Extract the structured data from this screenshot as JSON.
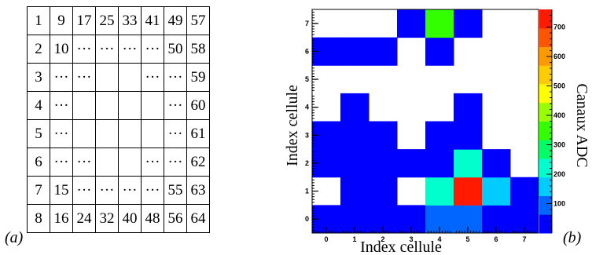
{
  "panel_a": {
    "label": "(a)",
    "rows": [
      [
        "1",
        "9",
        "17",
        "25",
        "33",
        "41",
        "49",
        "57"
      ],
      [
        "2",
        "10",
        "···",
        "···",
        "···",
        "···",
        "50",
        "58"
      ],
      [
        "3",
        "···",
        "···",
        "",
        "",
        "···",
        "···",
        "59"
      ],
      [
        "4",
        "···",
        "",
        "",
        "",
        "",
        "···",
        "60"
      ],
      [
        "5",
        "···",
        "",
        "",
        "",
        "",
        "···",
        "61"
      ],
      [
        "6",
        "···",
        "···",
        "",
        "",
        "···",
        "···",
        "62"
      ],
      [
        "7",
        "15",
        "···",
        "···",
        "···",
        "···",
        "55",
        "63"
      ],
      [
        "8",
        "16",
        "24",
        "32",
        "40",
        "48",
        "56",
        "64"
      ]
    ]
  },
  "panel_b": {
    "label": "(b)"
  },
  "chart_data": {
    "type": "heatmap",
    "xlabel": "Index cellule",
    "ylabel": "Index cellule",
    "zlabel": "Canaux ADC",
    "x": [
      0,
      1,
      2,
      3,
      4,
      5,
      6,
      7
    ],
    "y": [
      0,
      1,
      2,
      3,
      4,
      5,
      6,
      7
    ],
    "x_tick_labels": [
      "0",
      "1",
      "2",
      "3",
      "4",
      "5",
      "6",
      "7"
    ],
    "y_tick_labels": [
      "0",
      "1",
      "2",
      "3",
      "4",
      "5",
      "6",
      "7"
    ],
    "xlim": [
      -0.5,
      7.5
    ],
    "ylim": [
      -0.5,
      7.5
    ],
    "zlim": [
      0,
      760
    ],
    "z_ticks": [
      100,
      200,
      300,
      400,
      500,
      600,
      700
    ],
    "z_tick_labels": [
      "100",
      "200",
      "300",
      "400",
      "500",
      "600",
      "700"
    ],
    "values": [
      [
        5,
        5,
        5,
        5,
        80,
        80,
        5,
        5
      ],
      [
        null,
        5,
        5,
        null,
        200,
        720,
        150,
        5
      ],
      [
        5,
        5,
        5,
        5,
        60,
        220,
        20,
        null
      ],
      [
        5,
        5,
        5,
        null,
        5,
        5,
        null,
        null
      ],
      [
        null,
        5,
        null,
        null,
        null,
        5,
        null,
        null
      ],
      [
        null,
        null,
        null,
        null,
        null,
        null,
        null,
        null
      ],
      [
        5,
        5,
        5,
        null,
        5,
        null,
        null,
        null
      ],
      [
        null,
        null,
        null,
        5,
        370,
        60,
        null,
        null
      ]
    ],
    "colors": {
      "palette": [
        "#0000ff",
        "#0066ff",
        "#00ccff",
        "#00ffcc",
        "#00ff66",
        "#33ff00",
        "#99ff00",
        "#ffff00",
        "#ffcc00",
        "#ff9900",
        "#ff5500",
        "#ff1a00"
      ],
      "axis": "#000000"
    }
  }
}
